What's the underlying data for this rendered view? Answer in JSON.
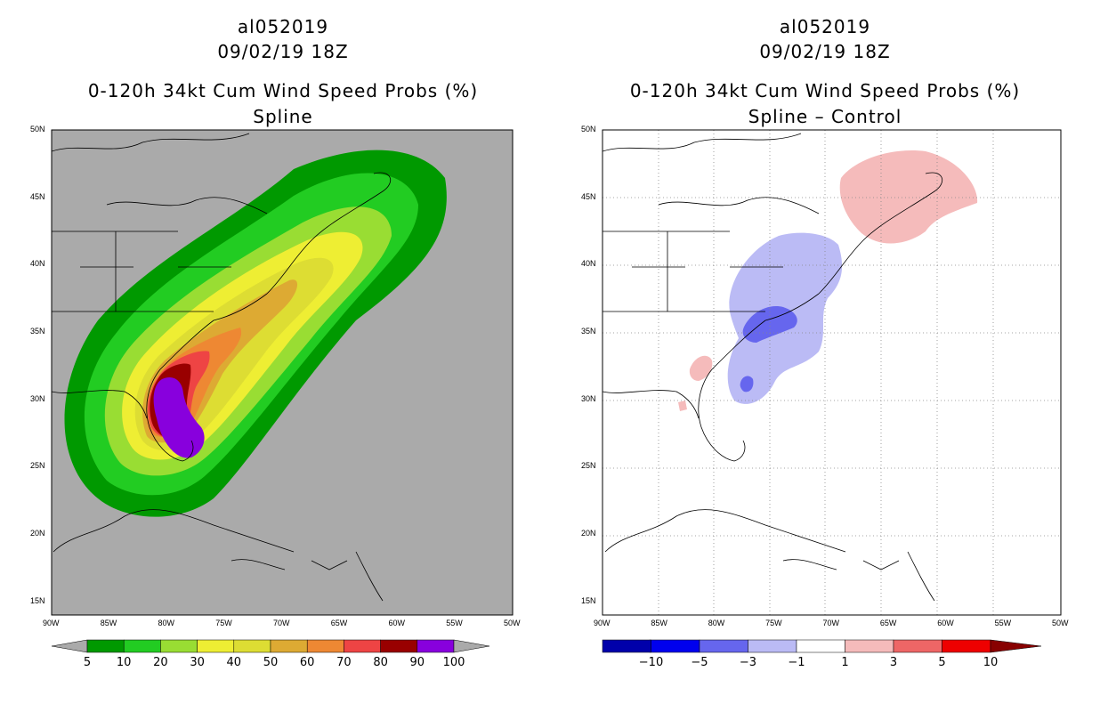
{
  "chart_data": [
    {
      "type": "heatmap",
      "storm_id": "al052019",
      "datetime": "09/02/19 18Z",
      "title": "0-120h 34kt Cum Wind Speed Probs (%)",
      "subtitle": "Spline",
      "x_axis_range": [
        -90,
        -50
      ],
      "y_axis_range": [
        14,
        50
      ],
      "x_tick_labels": [
        "90W",
        "85W",
        "80W",
        "75W",
        "70W",
        "65W",
        "60W",
        "55W",
        "50W"
      ],
      "y_tick_labels": [
        "50N",
        "45N",
        "40N",
        "35N",
        "30N",
        "25N",
        "20N",
        "15N"
      ],
      "colorbar": {
        "labels": [
          "5",
          "10",
          "20",
          "30",
          "40",
          "50",
          "60",
          "70",
          "80",
          "90",
          "100"
        ],
        "colors": [
          "#009900",
          "#22cc22",
          "#99dd33",
          "#eeee33",
          "#dddd33",
          "#ddaa33",
          "#ee8833",
          "#ee4444",
          "#990000",
          "#8800dd"
        ]
      },
      "background": "#aaaaaa"
    },
    {
      "type": "heatmap",
      "storm_id": "al052019",
      "datetime": "09/02/19 18Z",
      "title": "0-120h 34kt Cum Wind Speed Probs (%)",
      "subtitle": "Spline – Control",
      "x_axis_range": [
        -90,
        -50
      ],
      "y_axis_range": [
        14,
        50
      ],
      "x_tick_labels": [
        "90W",
        "85W",
        "80W",
        "75W",
        "70W",
        "65W",
        "60W",
        "55W",
        "50W"
      ],
      "y_tick_labels": [
        "50N",
        "45N",
        "40N",
        "35N",
        "30N",
        "25N",
        "20N",
        "15N"
      ],
      "grid": "dotted",
      "colorbar": {
        "labels": [
          "−10",
          "−5",
          "−3",
          "−1",
          "1",
          "3",
          "5",
          "10"
        ],
        "colors": [
          "#0000aa",
          "#0000ee",
          "#6666ee",
          "#bbbbf5",
          "#ffffff",
          "#f5bbbb",
          "#ee6666",
          "#ee0000"
        ]
      },
      "background": "#ffffff"
    }
  ]
}
